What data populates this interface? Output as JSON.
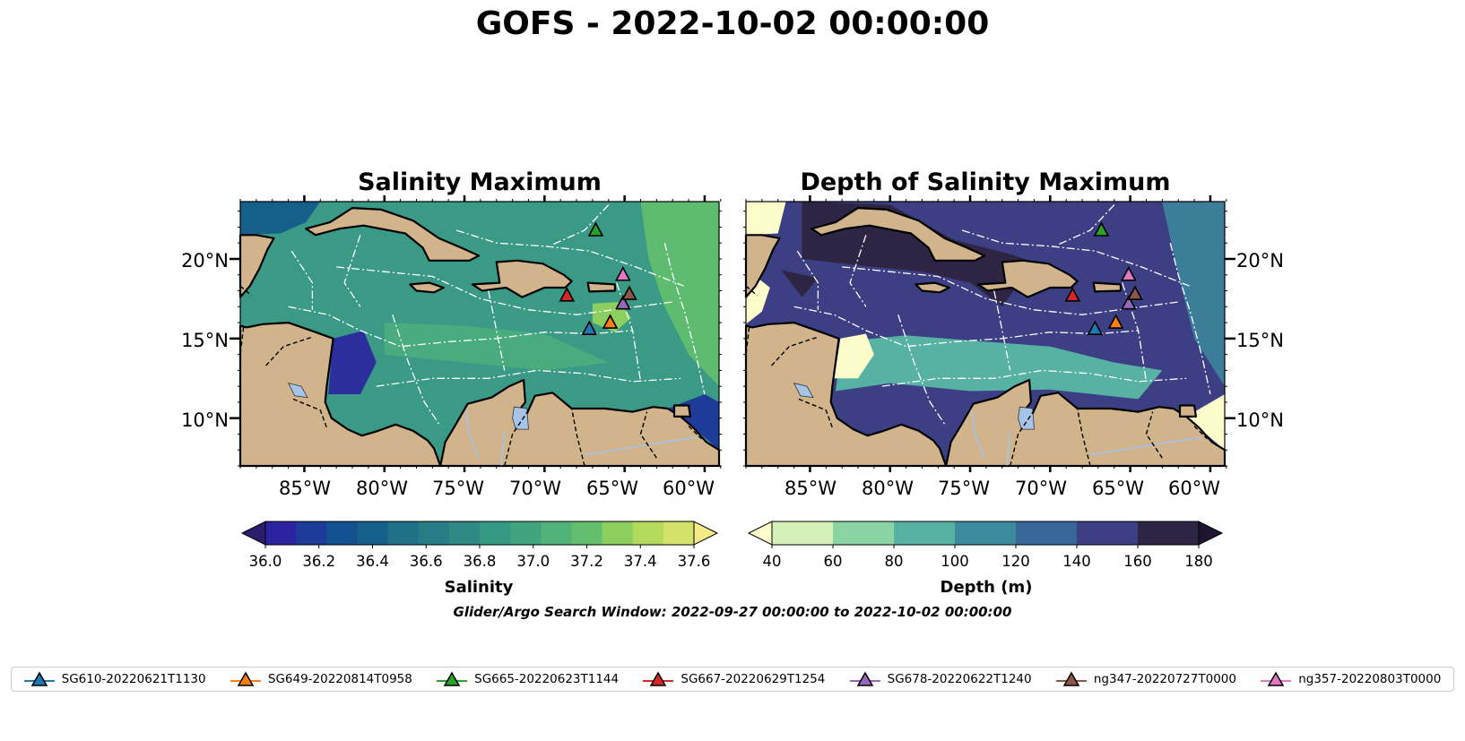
{
  "title": "GOFS - 2022-10-02 00:00:00",
  "panels": [
    {
      "title": "Salinity Maximum",
      "colorbar": {
        "label": "Salinity",
        "ticks": [
          "36.0",
          "36.2",
          "36.4",
          "36.6",
          "36.8",
          "37.0",
          "37.2",
          "37.4",
          "37.6"
        ],
        "colors": [
          "#2a1d6b",
          "#2b22a0",
          "#1f3b9a",
          "#13508f",
          "#165f8a",
          "#207088",
          "#277c86",
          "#2f8a85",
          "#359883",
          "#40a47f",
          "#51b37a",
          "#63bf6d",
          "#8ccf5e",
          "#b3da5b",
          "#d4e26a",
          "#f4ea8a"
        ]
      }
    },
    {
      "title": "Depth of Salinity Maximum",
      "colorbar": {
        "label": "Depth (m)",
        "ticks": [
          "40",
          "60",
          "80",
          "100",
          "120",
          "140",
          "160",
          "180"
        ],
        "colors": [
          "#fdfdcc",
          "#d5efb8",
          "#8bd4a3",
          "#57b2a3",
          "#3c8a9e",
          "#39679a",
          "#3d3f85",
          "#2d2543",
          "#1f1530"
        ]
      }
    }
  ],
  "axes": {
    "lon_labels": [
      "85°W",
      "80°W",
      "75°W",
      "70°W",
      "65°W",
      "60°W"
    ],
    "lat_labels": [
      "20°N",
      "15°N",
      "10°N"
    ]
  },
  "search_window": "Glider/Argo Search Window: 2022-09-27 00:00:00 to 2022-10-02 00:00:00",
  "gliders": [
    {
      "name": "SG610-20220621T1130",
      "color": "#1f77b4",
      "lon": -67.2,
      "lat": 15.6
    },
    {
      "name": "SG649-20220814T0958",
      "color": "#ff7f0e",
      "lon": -65.9,
      "lat": 16.0
    },
    {
      "name": "SG665-20220623T1144",
      "color": "#2ca02c",
      "lon": -66.8,
      "lat": 21.8
    },
    {
      "name": "SG667-20220629T1254",
      "color": "#d62728",
      "lon": -68.6,
      "lat": 17.7
    },
    {
      "name": "SG678-20220622T1240",
      "color": "#9467bd",
      "lon": -65.1,
      "lat": 17.2
    },
    {
      "name": "ng347-20220727T0000",
      "color": "#8c564b",
      "lon": -64.7,
      "lat": 17.8
    },
    {
      "name": "ng357-20220803T0000",
      "color": "#e377c2",
      "lon": -65.1,
      "lat": 19.0
    }
  ],
  "map_colors": {
    "land": "#d2b48c",
    "coastline": "#000000",
    "lakes": "#a6c3e8",
    "salinity_field": "#3a9a85",
    "depth_field": "#3d3f85"
  }
}
